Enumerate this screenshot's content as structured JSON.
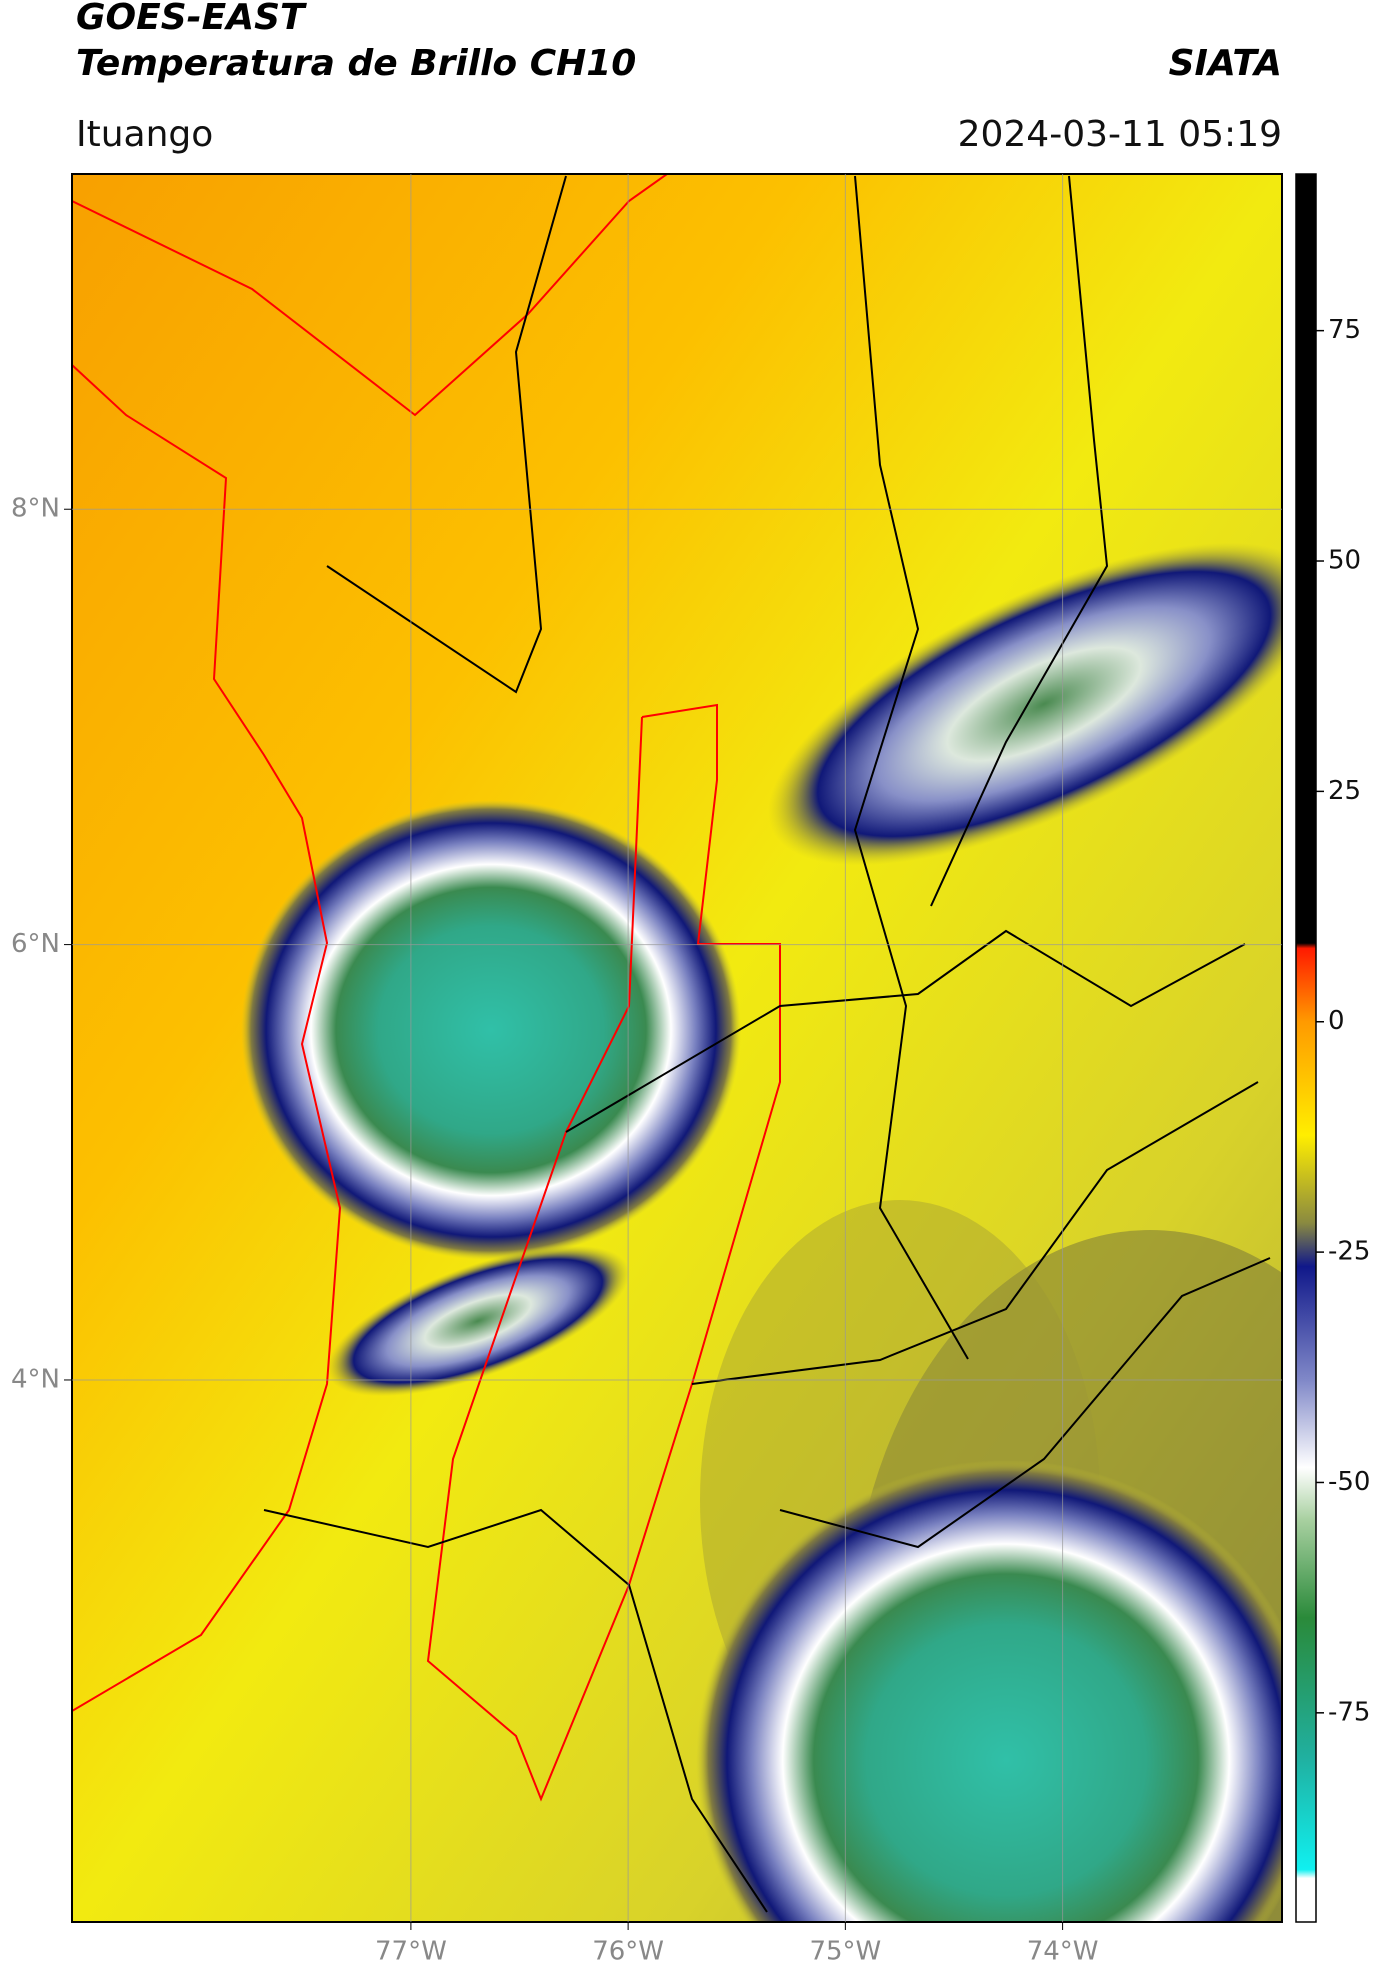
{
  "header": {
    "title": "GOES-EAST",
    "subtitle": "Temperatura de Brillo CH10",
    "source": "SIATA",
    "location": "Ituango",
    "datetime": "2024-03-11 05:19"
  },
  "map": {
    "xlim": [
      -78.56,
      -72.99
    ],
    "ylim": [
      1.51,
      9.54
    ],
    "xticks": [
      {
        "value": -77,
        "label": "77°W"
      },
      {
        "value": -76,
        "label": "76°W"
      },
      {
        "value": -75,
        "label": "75°W"
      },
      {
        "value": -74,
        "label": "74°W"
      }
    ],
    "yticks": [
      {
        "value": 4,
        "label": "4°N"
      },
      {
        "value": 6,
        "label": "6°N"
      },
      {
        "value": 8,
        "label": "8°N"
      }
    ],
    "grid": true
  },
  "colorbar": {
    "lim": [
      -97.7,
      92
    ],
    "ticks": [
      -75,
      -50,
      -25,
      0,
      25,
      50,
      75
    ]
  }
}
